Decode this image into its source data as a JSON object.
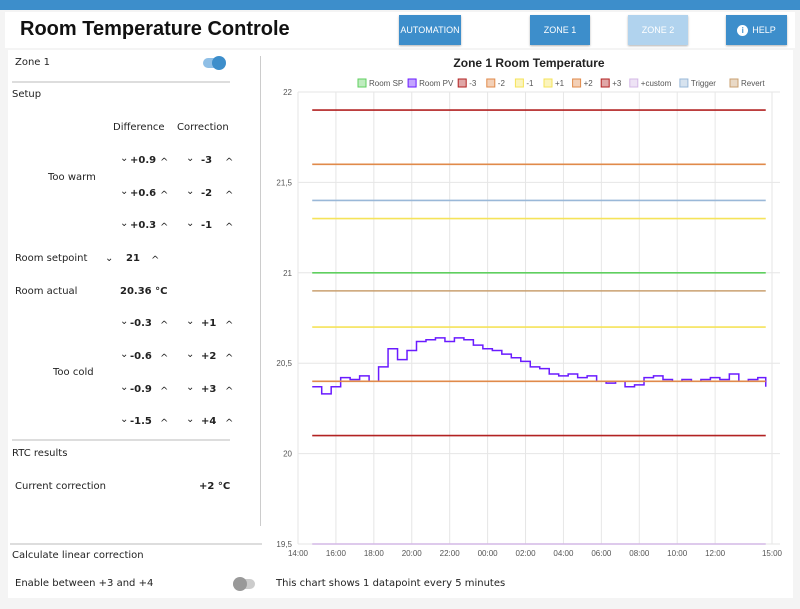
{
  "header": {
    "title": "Room Temperature Controle",
    "buttons": {
      "automation": "AUTOMATION",
      "zone1": "ZONE 1",
      "zone2": "ZONE 2",
      "help": "HELP"
    }
  },
  "left": {
    "zone_label": "Zone 1",
    "zone_enabled": true,
    "setup": "Setup",
    "col_difference": "Difference",
    "col_correction": "Correction",
    "too_warm": "Too warm",
    "warm_rows": [
      {
        "diff": "+0.9",
        "corr": "-3"
      },
      {
        "diff": "+0.6",
        "corr": "-2"
      },
      {
        "diff": "+0.3",
        "corr": "-1"
      }
    ],
    "setpoint_label": "Room setpoint",
    "setpoint": "21",
    "actual_label": "Room actual",
    "actual": "20.36 °C",
    "too_cold": "Too cold",
    "cold_rows": [
      {
        "diff": "-0.3",
        "corr": "+1"
      },
      {
        "diff": "-0.6",
        "corr": "+2"
      },
      {
        "diff": "-0.9",
        "corr": "+3"
      },
      {
        "diff": "-1.5",
        "corr": "+4"
      }
    ],
    "rtc_results": "RTC results",
    "current_correction_label": "Current correction",
    "current_correction": "+2 °C",
    "linear_label": "Calculate linear correction",
    "enable_label": "Enable between +3 and +4",
    "enable_on": false
  },
  "footnote": "This chart shows 1 datapoint every 5 minutes",
  "chart_data": {
    "type": "line",
    "title": "Zone 1 Room Temperature",
    "ylim": [
      19.5,
      22
    ],
    "yticks": [
      "22",
      "21,5",
      "21",
      "20,5",
      "20",
      "19,5"
    ],
    "xlabel_note": "x = hours after 14:00",
    "xticks": [
      {
        "h": 0,
        "label": "14:00"
      },
      {
        "h": 2,
        "label": "16:00"
      },
      {
        "h": 4,
        "label": "18:00"
      },
      {
        "h": 6,
        "label": "20:00"
      },
      {
        "h": 8,
        "label": "22:00"
      },
      {
        "h": 10,
        "label": "00:00"
      },
      {
        "h": 12,
        "label": "02:00"
      },
      {
        "h": 14,
        "label": "04:00"
      },
      {
        "h": 16,
        "label": "06:00"
      },
      {
        "h": 18,
        "label": "08:00"
      },
      {
        "h": 20,
        "label": "10:00"
      },
      {
        "h": 22,
        "label": "12:00"
      },
      {
        "h": 25,
        "label": "15:00"
      }
    ],
    "xlim": [
      0,
      25
    ],
    "xrange": [
      0.75,
      24.67
    ],
    "series": [
      {
        "name": "Room SP",
        "color": "#5fcf5f",
        "value": 21
      },
      {
        "name": "Room PV",
        "color": "#6a1bff",
        "x": [
          0.75,
          1.25,
          1.75,
          2.25,
          2.75,
          3.25,
          3.75,
          4.25,
          4.75,
          5.25,
          5.75,
          6.25,
          6.75,
          7.25,
          7.75,
          8.25,
          8.75,
          9.25,
          9.75,
          10.25,
          10.75,
          11.25,
          11.75,
          12.25,
          12.75,
          13.25,
          13.75,
          14.25,
          14.75,
          15.25,
          15.75,
          16.25,
          16.75,
          17.25,
          17.75,
          18.25,
          18.75,
          19.25,
          19.75,
          20.25,
          20.75,
          21.25,
          21.75,
          22.25,
          22.75,
          23.25,
          23.75,
          24.25,
          24.67
        ],
        "values": [
          20.37,
          20.33,
          20.37,
          20.42,
          20.41,
          20.43,
          20.4,
          20.48,
          20.58,
          20.52,
          20.57,
          20.62,
          20.63,
          20.64,
          20.62,
          20.64,
          20.63,
          20.6,
          20.58,
          20.57,
          20.55,
          20.53,
          20.51,
          20.48,
          20.47,
          20.44,
          20.43,
          20.44,
          20.42,
          20.43,
          20.4,
          20.39,
          20.4,
          20.37,
          20.38,
          20.42,
          20.43,
          20.41,
          20.4,
          20.41,
          20.4,
          20.41,
          20.42,
          20.41,
          20.44,
          20.4,
          20.41,
          20.42,
          20.37
        ]
      },
      {
        "name": "-3",
        "color": "#b22222",
        "value": 21.9
      },
      {
        "name": "-2",
        "color": "#e08a4a",
        "value": 21.6
      },
      {
        "name": "-1",
        "color": "#f5e35a",
        "value": 21.3
      },
      {
        "name": "+1",
        "color": "#f5e35a",
        "value": 20.7
      },
      {
        "name": "+2",
        "color": "#e08a4a",
        "value": 20.4
      },
      {
        "name": "+3",
        "color": "#b22222",
        "value": 20.1
      },
      {
        "name": "+custom",
        "color": "#d4b8e6",
        "value": 19.5
      },
      {
        "name": "Trigger",
        "color": "#9ab8d8",
        "value": 21.4
      },
      {
        "name": "Revert",
        "color": "#c9a070",
        "value": 20.9
      }
    ]
  }
}
